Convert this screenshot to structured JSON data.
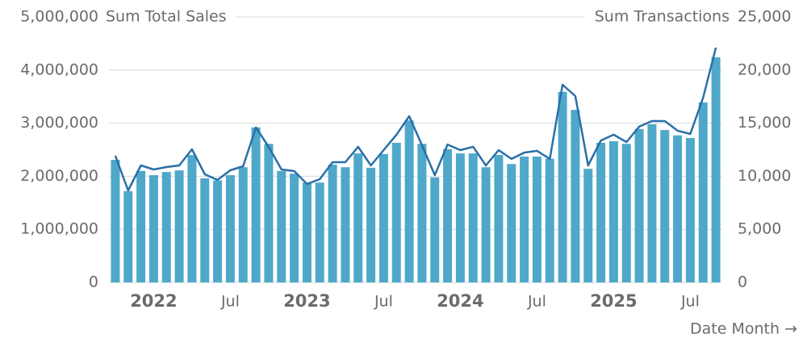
{
  "chart_data": {
    "type": "bar-line",
    "x_label": "Date Month →",
    "categories": [
      null,
      null,
      null,
      "2022",
      null,
      null,
      null,
      null,
      null,
      "Jul",
      null,
      null,
      null,
      null,
      null,
      "2023",
      null,
      null,
      null,
      null,
      null,
      "Jul",
      null,
      null,
      null,
      null,
      null,
      "2024",
      null,
      null,
      null,
      null,
      null,
      "Jul",
      null,
      null,
      null,
      null,
      null,
      "2025",
      null,
      null,
      null,
      null,
      null,
      "Jul",
      null,
      null
    ],
    "series": [
      {
        "name": "Sum Total Sales",
        "type": "bar",
        "axis": "y",
        "color": "#4fa8c9",
        "values": [
          2310000,
          1720000,
          2100000,
          2020000,
          2080000,
          2110000,
          2400000,
          1960000,
          1920000,
          2020000,
          2170000,
          2920000,
          2610000,
          2100000,
          2050000,
          1880000,
          1880000,
          2220000,
          2170000,
          2430000,
          2160000,
          2420000,
          2630000,
          3050000,
          2610000,
          1980000,
          2510000,
          2430000,
          2430000,
          2170000,
          2400000,
          2230000,
          2370000,
          2370000,
          2330000,
          3590000,
          3250000,
          2140000,
          2630000,
          2660000,
          2610000,
          2890000,
          2980000,
          2870000,
          2770000,
          2720000,
          3390000,
          4240000
        ]
      },
      {
        "name": "Sum Transactions",
        "type": "line",
        "axis": "y2",
        "color": "#2a6fa8",
        "values": [
          11930,
          8660,
          11020,
          10640,
          10870,
          11020,
          12540,
          10180,
          9650,
          10560,
          10940,
          14590,
          12770,
          10640,
          10490,
          9270,
          9730,
          11320,
          11320,
          12770,
          11020,
          12460,
          13910,
          15650,
          12920,
          10110,
          12990,
          12460,
          12770,
          11020,
          12460,
          11630,
          12230,
          12390,
          11630,
          18620,
          17550,
          11020,
          13370,
          13910,
          13220,
          14670,
          15200,
          15200,
          14290,
          13980,
          17400,
          22110
        ]
      }
    ],
    "ylim": [
      0,
      5000000
    ],
    "yticks": [
      0,
      {
        "value": 1000000,
        "label": "1,000,000"
      },
      {
        "value": 2000000,
        "label": "2,000,000"
      },
      {
        "value": 3000000,
        "label": "3,000,000"
      },
      {
        "value": 4000000,
        "label": "4,000,000"
      },
      {
        "value": 5000000,
        "label": "5,000,000"
      }
    ],
    "y2lim": [
      0,
      25000
    ],
    "y2ticks": [
      0,
      {
        "value": 5000,
        "label": "5,000"
      },
      {
        "value": 10000,
        "label": "10,000"
      },
      {
        "value": 15000,
        "label": "15,000"
      },
      {
        "value": 20000,
        "label": "20,000"
      },
      {
        "value": 25000,
        "label": "25,000"
      }
    ],
    "grid": true
  }
}
